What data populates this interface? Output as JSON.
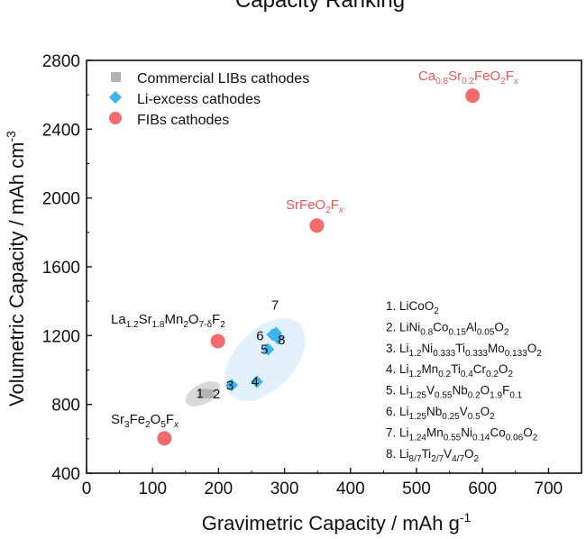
{
  "chart_data": {
    "type": "scatter",
    "title": "Capacity Ranking",
    "xlabel": "Gravimetric Capacity / mAh g",
    "xlabel_sup": "-1",
    "ylabel": "Volumetric Capacity / mAh cm",
    "ylabel_sup": "-3",
    "xlim": [
      0,
      750
    ],
    "ylim": [
      400,
      2800
    ],
    "x_ticks": [
      "0",
      "100",
      "200",
      "300",
      "400",
      "500",
      "600",
      "700"
    ],
    "y_ticks": [
      "400",
      "800",
      "1200",
      "1600",
      "2000",
      "2400",
      "2800"
    ],
    "grid": false,
    "legend_position": "top-left",
    "series": [
      {
        "name": "Commercial LIBs cathodes",
        "marker": "square",
        "color": "#b3b3b3",
        "points": [
          {
            "x": 176,
            "y": 865,
            "label": "1"
          },
          {
            "x": 186,
            "y": 862,
            "label": "2"
          }
        ]
      },
      {
        "name": "Li-excess cathodes",
        "marker": "diamond",
        "color": "#3fb4ea",
        "points": [
          {
            "x": 220,
            "y": 912,
            "label": "3"
          },
          {
            "x": 258,
            "y": 932,
            "label": "4"
          },
          {
            "x": 275,
            "y": 1120,
            "label": "5"
          },
          {
            "x": 282,
            "y": 1205,
            "label": "6"
          },
          {
            "x": 287,
            "y": 1215,
            "label": "7"
          },
          {
            "x": 290,
            "y": 1185,
            "label": "8"
          }
        ]
      },
      {
        "name": "FIBs cathodes",
        "marker": "circle",
        "color": "#f26b6e",
        "points": [
          {
            "x": 585,
            "y": 2595
          },
          {
            "x": 349,
            "y": 1840
          },
          {
            "x": 199,
            "y": 1168
          },
          {
            "x": 118,
            "y": 603
          }
        ]
      }
    ],
    "annotations": {
      "ca": [
        "Ca",
        "0.8",
        "Sr",
        "0.2",
        "FeO",
        "2",
        "F",
        "x"
      ],
      "sr": [
        "SrFeO",
        "2",
        "F",
        "x"
      ],
      "la": [
        "La",
        "1.2",
        "Sr",
        "1.8",
        "Mn",
        "2",
        "O",
        "7-δ",
        "F",
        "2"
      ],
      "sf": [
        "Sr",
        "3",
        "Fe",
        "2",
        "O",
        "5",
        "F",
        "x"
      ]
    },
    "cathode_list": [
      [
        "1. LiCoO",
        "2"
      ],
      [
        "2. LiNi",
        "0.8",
        "Co",
        "0.15",
        "Al",
        "0.05",
        "O",
        "2"
      ],
      [
        "3. Li",
        "1.2",
        "Ni",
        "0.333",
        "Ti",
        "0.333",
        "Mo",
        "0.133",
        "O",
        "2"
      ],
      [
        "4. Li",
        "1.2",
        "Mn",
        "0.2",
        "Ti",
        "0.4",
        "Cr",
        "0.2",
        "O",
        "2"
      ],
      [
        "5. Li",
        "1.25",
        "V",
        "0.55",
        "Nb",
        "0.2",
        "O",
        "1.9",
        "F",
        "0.1"
      ],
      [
        "6. Li",
        "1.25",
        "Nb",
        "0.25",
        "V",
        "0.5",
        "O",
        "2"
      ],
      [
        "7. Li",
        "1.24",
        "Mn",
        "0.55",
        "Ni",
        "0.14",
        "Co",
        "0.06",
        "O",
        "2"
      ],
      [
        "8. Li",
        "8/7",
        "Ti",
        "2/7",
        "V",
        "4/7",
        "O",
        "2"
      ]
    ]
  }
}
